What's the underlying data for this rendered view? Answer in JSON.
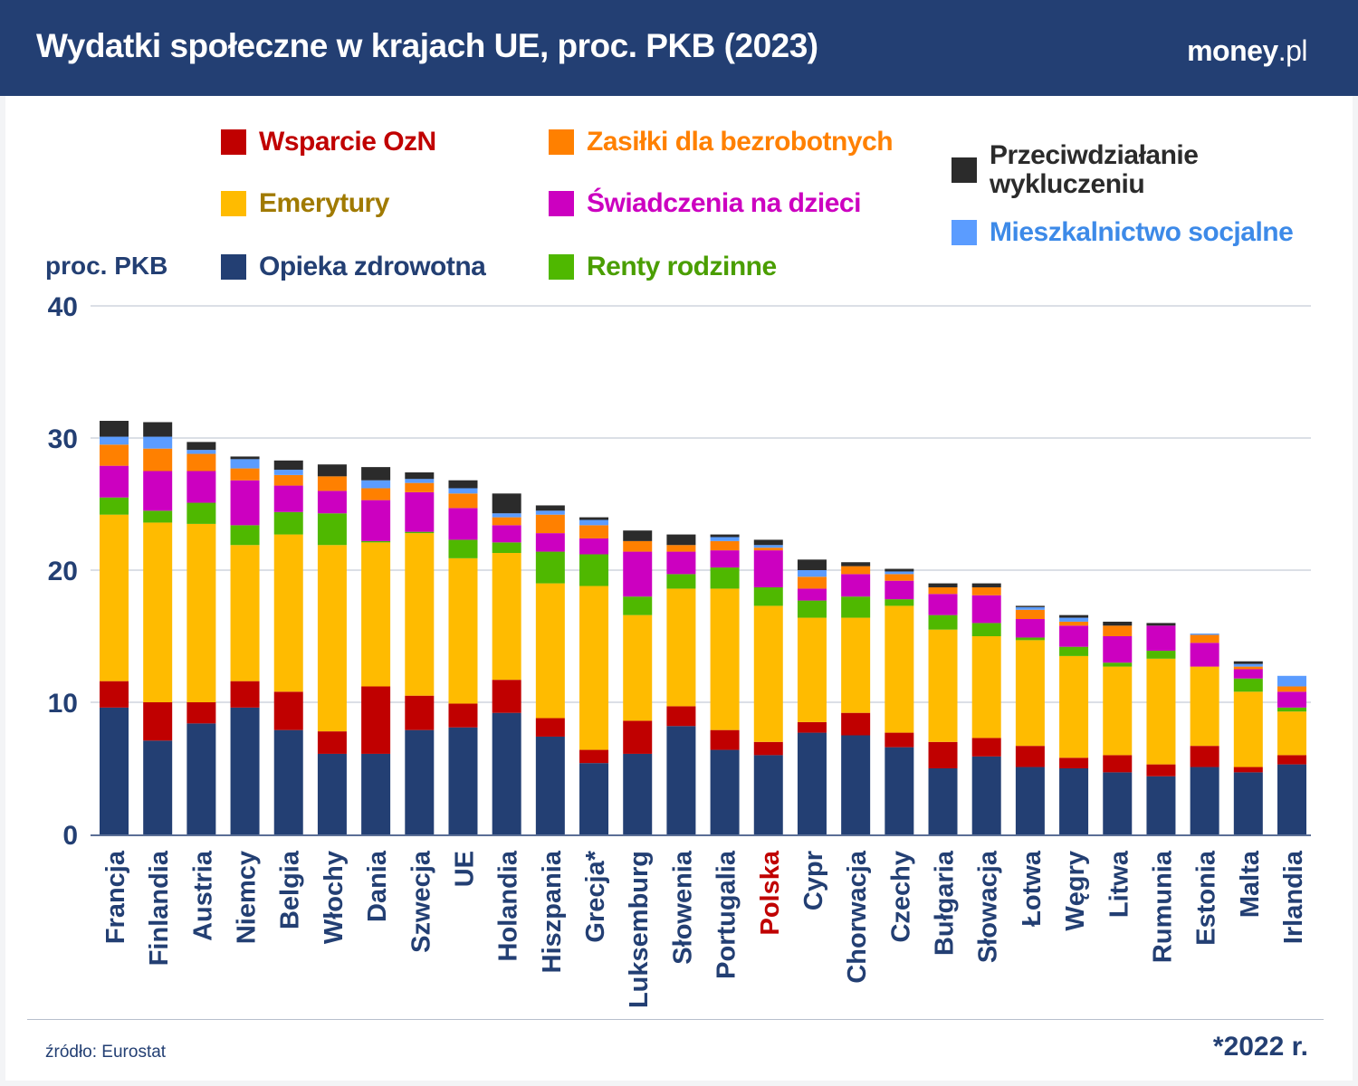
{
  "header": {
    "title": "Wydatki społeczne w krajach UE, proc. PKB (2023)",
    "logo": "money.pl",
    "logo_main": "money",
    "logo_tld": ".pl"
  },
  "footer": {
    "source": "źródło: Eurostat",
    "note": "*2022 r."
  },
  "colors": {
    "header_bg": "#233f73",
    "axis_text": "#233f73",
    "highlight": "#c00000",
    "grid": "#b7bfcc"
  },
  "chart_data": {
    "type": "bar",
    "stacked": true,
    "title": "Wydatki społeczne w krajach UE, proc. PKB (2023)",
    "ylabel": "proc. PKB",
    "xlabel": "",
    "ylim": [
      0,
      40
    ],
    "yticks": [
      0,
      10,
      20,
      30,
      40
    ],
    "grid": true,
    "legend_position": "top",
    "highlight_category": "Polska",
    "categories": [
      "Francja",
      "Finlandia",
      "Austria",
      "Niemcy",
      "Belgia",
      "Włochy",
      "Dania",
      "Szwecja",
      "UE",
      "Holandia",
      "Hiszpania",
      "Grecja*",
      "Luksemburg",
      "Słowenia",
      "Portugalia",
      "Polska",
      "Cypr",
      "Chorwacja",
      "Czechy",
      "Bułgaria",
      "Słowacja",
      "Łotwa",
      "Węgry",
      "Litwa",
      "Rumunia",
      "Estonia",
      "Malta",
      "Irlandia"
    ],
    "series": [
      {
        "name": "Opieka zdrowotna",
        "color": "#233f73",
        "text_color": "#233f73",
        "values": [
          9.6,
          7.1,
          8.4,
          9.6,
          7.9,
          6.1,
          6.1,
          7.9,
          8.1,
          9.2,
          7.4,
          5.4,
          6.1,
          8.2,
          6.4,
          6.0,
          7.7,
          7.5,
          6.6,
          5.0,
          5.9,
          5.1,
          5.0,
          4.7,
          4.4,
          5.1,
          4.7,
          5.3
        ]
      },
      {
        "name": "Wsparcie OzN",
        "color": "#c00000",
        "text_color": "#c00000",
        "values": [
          2.0,
          2.9,
          1.6,
          2.0,
          2.9,
          1.7,
          5.1,
          2.6,
          1.8,
          2.5,
          1.4,
          1.0,
          2.5,
          1.5,
          1.5,
          1.0,
          0.8,
          1.7,
          1.1,
          2.0,
          1.4,
          1.6,
          0.8,
          1.3,
          0.9,
          1.6,
          0.4,
          0.7
        ]
      },
      {
        "name": "Emerytury",
        "color": "#ffbb00",
        "text_color": "#a07a00",
        "values": [
          12.6,
          13.6,
          13.5,
          10.3,
          11.9,
          14.1,
          10.9,
          12.3,
          11.0,
          9.6,
          10.2,
          12.4,
          8.0,
          8.9,
          10.7,
          10.3,
          7.9,
          7.2,
          9.6,
          8.5,
          7.7,
          8.0,
          7.7,
          6.7,
          8.0,
          6.0,
          5.7,
          3.3
        ]
      },
      {
        "name": "Renty rodzinne",
        "color": "#4fb800",
        "text_color": "#4a9e00",
        "values": [
          1.3,
          0.9,
          1.6,
          1.5,
          1.7,
          2.4,
          0.1,
          0.1,
          1.4,
          0.8,
          2.4,
          2.4,
          1.4,
          1.1,
          1.6,
          1.4,
          1.3,
          1.6,
          0.5,
          1.1,
          1.0,
          0.2,
          0.7,
          0.3,
          0.6,
          0.0,
          1.0,
          0.3
        ]
      },
      {
        "name": "Świadczenia na dzieci",
        "color": "#cc00c0",
        "text_color": "#cc00c0",
        "values": [
          2.4,
          3.0,
          2.4,
          3.4,
          2.0,
          1.7,
          3.1,
          3.0,
          2.4,
          1.3,
          1.4,
          1.2,
          3.4,
          1.7,
          1.3,
          2.8,
          0.9,
          1.7,
          1.4,
          1.6,
          2.1,
          1.4,
          1.6,
          2.0,
          1.9,
          1.8,
          0.7,
          1.2
        ]
      },
      {
        "name": "Zasiłki dla bezrobotnych",
        "color": "#ff8000",
        "text_color": "#ff8000",
        "values": [
          1.6,
          1.7,
          1.3,
          0.9,
          0.8,
          1.1,
          0.9,
          0.7,
          1.1,
          0.6,
          1.4,
          1.0,
          0.8,
          0.5,
          0.7,
          0.2,
          0.9,
          0.6,
          0.5,
          0.5,
          0.6,
          0.7,
          0.3,
          0.8,
          0.0,
          0.6,
          0.2,
          0.4
        ]
      },
      {
        "name": "Mieszkalnictwo socjalne",
        "color": "#5b9cff",
        "text_color": "#3d8ae8",
        "values": [
          0.6,
          0.9,
          0.3,
          0.7,
          0.4,
          0.0,
          0.6,
          0.3,
          0.4,
          0.3,
          0.3,
          0.4,
          0.0,
          0.0,
          0.3,
          0.2,
          0.5,
          0.0,
          0.2,
          0.0,
          0.0,
          0.2,
          0.3,
          0.0,
          0.0,
          0.1,
          0.2,
          0.8
        ]
      },
      {
        "name": "Przeciwdziałanie wykluczeniu",
        "color": "#2b2b2b",
        "text_color": "#2b2b2b",
        "values": [
          1.2,
          1.1,
          0.6,
          0.2,
          0.7,
          0.9,
          1.0,
          0.5,
          0.6,
          1.5,
          0.4,
          0.2,
          0.8,
          0.8,
          0.2,
          0.4,
          0.8,
          0.3,
          0.2,
          0.3,
          0.3,
          0.1,
          0.2,
          0.3,
          0.2,
          0.0,
          0.2,
          0.0
        ]
      }
    ]
  },
  "legend": [
    {
      "label": "Wsparcie OzN",
      "color": "#c00000",
      "text_color": "#c00000"
    },
    {
      "label": "Zasiłki dla bezrobotnych",
      "color": "#ff8000",
      "text_color": "#ff8000"
    },
    {
      "label": "Emerytury",
      "color": "#ffbb00",
      "text_color": "#a07a00"
    },
    {
      "label": "Świadczenia na dzieci",
      "color": "#cc00c0",
      "text_color": "#cc00c0"
    },
    {
      "label": "Opieka zdrowotna",
      "color": "#233f73",
      "text_color": "#233f73"
    },
    {
      "label": "Renty rodzinne",
      "color": "#4fb800",
      "text_color": "#4a9e00"
    },
    {
      "label_line1": "Przeciwdziałanie",
      "label_line2": "wykluczeniu",
      "color": "#2b2b2b",
      "text_color": "#2b2b2b"
    },
    {
      "label": "Mieszkalnictwo socjalne",
      "color": "#5b9cff",
      "text_color": "#3d8ae8"
    }
  ]
}
